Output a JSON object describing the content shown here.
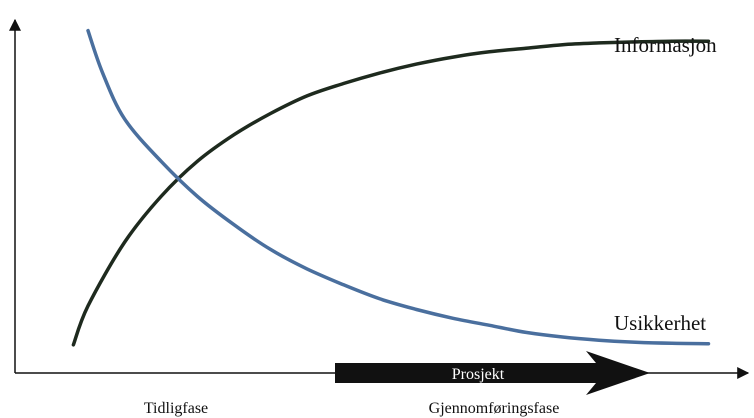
{
  "chart_data": {
    "type": "line",
    "title": "",
    "xlabel": "",
    "ylabel": "",
    "xlim": [
      0,
      100
    ],
    "ylim": [
      0,
      100
    ],
    "grid": false,
    "legend": "none",
    "series": [
      {
        "name": "Informasjon",
        "color": "#1e2a1e",
        "points": [
          [
            8,
            8
          ],
          [
            10,
            19
          ],
          [
            15,
            37
          ],
          [
            20,
            50
          ],
          [
            25,
            60
          ],
          [
            30,
            67.5
          ],
          [
            35,
            73.5
          ],
          [
            40,
            78.5
          ],
          [
            45,
            82
          ],
          [
            50,
            85
          ],
          [
            55,
            87.5
          ],
          [
            60,
            89.5
          ],
          [
            65,
            91
          ],
          [
            70,
            92
          ],
          [
            75,
            93
          ],
          [
            80,
            93.5
          ],
          [
            85,
            93.8
          ],
          [
            90,
            94
          ],
          [
            95,
            94
          ]
        ]
      },
      {
        "name": "Usikkerhet",
        "color": "#4a6f9e",
        "points": [
          [
            10,
            97
          ],
          [
            12,
            85
          ],
          [
            15,
            72
          ],
          [
            20,
            60
          ],
          [
            25,
            50
          ],
          [
            30,
            42
          ],
          [
            35,
            35
          ],
          [
            40,
            29.5
          ],
          [
            45,
            25
          ],
          [
            50,
            21
          ],
          [
            55,
            18
          ],
          [
            60,
            15.5
          ],
          [
            65,
            13.5
          ],
          [
            70,
            11.5
          ],
          [
            75,
            10.2
          ],
          [
            80,
            9.3
          ],
          [
            85,
            8.7
          ],
          [
            90,
            8.4
          ],
          [
            95,
            8.3
          ]
        ]
      }
    ],
    "phases": [
      "Tidligfase",
      "Gjennomføringsfase"
    ],
    "arrow_label": "Prosjekt"
  }
}
